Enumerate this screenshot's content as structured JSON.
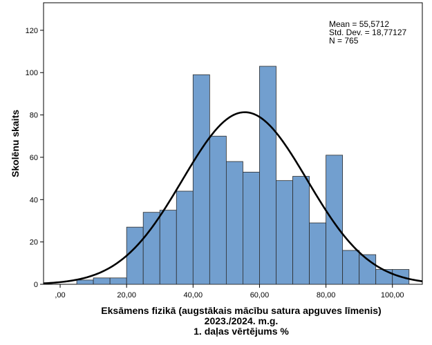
{
  "chart_data": {
    "type": "bar",
    "subtype": "histogram",
    "xlabel_lines": [
      "Eksāmens fizikā (augstākais mācību satura apguves līmenis)",
      "2023./2024. m.g.",
      "1. daļas vērtējums %"
    ],
    "ylabel": "Skolēnu skaits",
    "xlim": [
      -5,
      109
    ],
    "ylim": [
      0,
      133
    ],
    "x_ticks": [
      {
        "value": 0,
        "label": ",00"
      },
      {
        "value": 20,
        "label": "20,00"
      },
      {
        "value": 40,
        "label": "40,00"
      },
      {
        "value": 60,
        "label": "60,00"
      },
      {
        "value": 80,
        "label": "80,00"
      },
      {
        "value": 100,
        "label": "100,00"
      }
    ],
    "y_ticks": [
      {
        "value": 0,
        "label": "0"
      },
      {
        "value": 20,
        "label": "20"
      },
      {
        "value": 40,
        "label": "40"
      },
      {
        "value": 60,
        "label": "60"
      },
      {
        "value": 80,
        "label": "80"
      },
      {
        "value": 100,
        "label": "100"
      },
      {
        "value": 120,
        "label": "120"
      }
    ],
    "bins": [
      {
        "start": 5,
        "end": 10,
        "count": 2
      },
      {
        "start": 10,
        "end": 15,
        "count": 3
      },
      {
        "start": 15,
        "end": 20,
        "count": 3
      },
      {
        "start": 20,
        "end": 25,
        "count": 27
      },
      {
        "start": 25,
        "end": 30,
        "count": 34
      },
      {
        "start": 30,
        "end": 35,
        "count": 35
      },
      {
        "start": 35,
        "end": 40,
        "count": 44
      },
      {
        "start": 40,
        "end": 45,
        "count": 99
      },
      {
        "start": 45,
        "end": 50,
        "count": 70
      },
      {
        "start": 50,
        "end": 55,
        "count": 58
      },
      {
        "start": 55,
        "end": 60,
        "count": 53
      },
      {
        "start": 60,
        "end": 65,
        "count": 103
      },
      {
        "start": 65,
        "end": 70,
        "count": 49
      },
      {
        "start": 70,
        "end": 75,
        "count": 51
      },
      {
        "start": 75,
        "end": 80,
        "count": 29
      },
      {
        "start": 80,
        "end": 85,
        "count": 61
      },
      {
        "start": 85,
        "end": 90,
        "count": 16
      },
      {
        "start": 90,
        "end": 95,
        "count": 14
      },
      {
        "start": 95,
        "end": 100,
        "count": 7
      },
      {
        "start": 100,
        "end": 105,
        "count": 7
      }
    ],
    "stats": {
      "mean": 55.5712,
      "std_dev": 18.77127,
      "n": 765,
      "lines": [
        "Mean = 55,5712",
        "Std. Dev. = 18,77127",
        "N = 765"
      ]
    },
    "normal_curve": true,
    "bar_fill": "#729fcf",
    "bar_stroke": "#2b2b2b",
    "curve_color": "#000000",
    "grid": false,
    "legend": "none"
  }
}
